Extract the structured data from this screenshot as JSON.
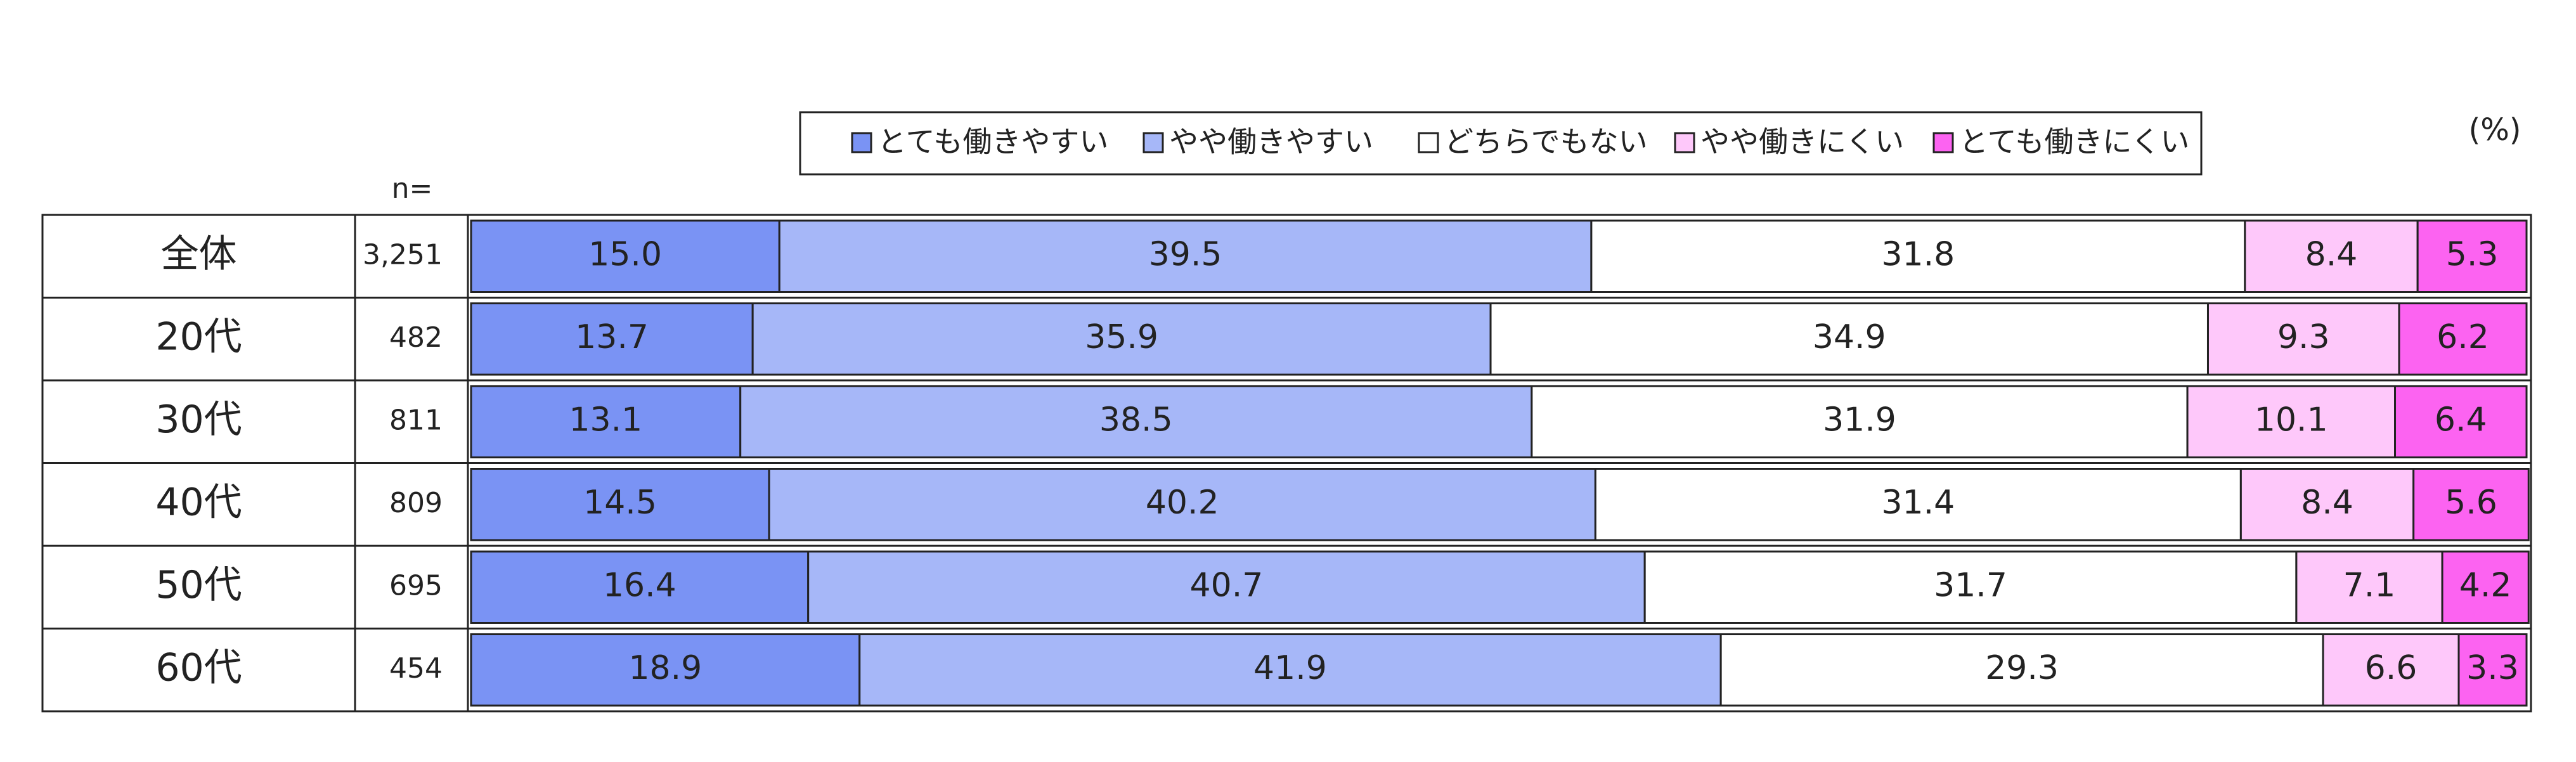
{
  "chart_data": {
    "type": "stacked-bar-horizontal",
    "unit": "(%)",
    "categories": [
      "全体",
      "20代",
      "30代",
      "40代",
      "50代",
      "60代"
    ],
    "n": {
      "label": "n=",
      "values": [
        3251,
        482,
        811,
        809,
        695,
        454
      ],
      "value_labels": [
        "3,251",
        "482",
        "811",
        "809",
        "695",
        "454"
      ]
    },
    "xlim": [
      0,
      100
    ],
    "series": [
      {
        "name": "とても働きやすい",
        "color": "#7a93f4",
        "values": [
          15.0,
          13.7,
          13.1,
          14.5,
          16.4,
          18.9
        ],
        "value_labels": [
          "15.0",
          "13.7",
          "13.1",
          "14.5",
          "16.4",
          "18.9"
        ]
      },
      {
        "name": "やや働きやすい",
        "color": "#a6b7f8",
        "values": [
          39.5,
          35.9,
          38.5,
          40.2,
          40.7,
          41.9
        ],
        "value_labels": [
          "39.5",
          "35.9",
          "38.5",
          "40.2",
          "40.7",
          "41.9"
        ]
      },
      {
        "name": "どちらでもない",
        "color": "#ffffff",
        "values": [
          31.8,
          34.9,
          31.9,
          31.4,
          31.7,
          29.3
        ],
        "value_labels": [
          "31.8",
          "34.9",
          "31.9",
          "31.4",
          "31.7",
          "29.3"
        ]
      },
      {
        "name": "やや働きにくい",
        "color": "#fec8fa",
        "values": [
          8.4,
          9.3,
          10.1,
          8.4,
          7.1,
          6.6
        ],
        "value_labels": [
          "8.4",
          "9.3",
          "10.1",
          "8.4",
          "7.1",
          "6.6"
        ]
      },
      {
        "name": "とても働きにくい",
        "color": "#fc63f1",
        "values": [
          5.3,
          6.2,
          6.4,
          5.6,
          4.2,
          3.3
        ],
        "value_labels": [
          "5.3",
          "6.2",
          "6.4",
          "5.6",
          "4.2",
          "3.3"
        ]
      }
    ]
  }
}
